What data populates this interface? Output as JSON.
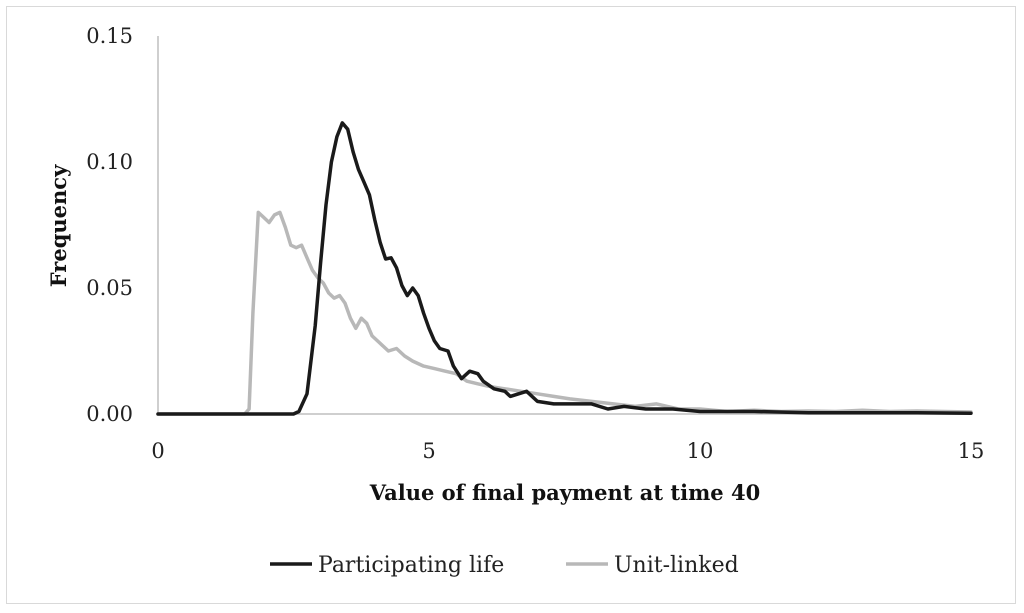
{
  "chart_data": {
    "type": "line",
    "xlabel": "Value of final payment at time 40",
    "ylabel": "Frequency",
    "xlim": [
      0,
      15
    ],
    "ylim": [
      0,
      0.15
    ],
    "x_ticks": [
      0,
      5,
      10,
      15
    ],
    "x_tick_labels": [
      "0",
      "5",
      "10",
      "15"
    ],
    "y_ticks": [
      0,
      0.05,
      0.1,
      0.15
    ],
    "y_tick_labels": [
      "0.00",
      "0.05",
      "0.10",
      "0.15"
    ],
    "grid": false,
    "legend_position": "bottom",
    "series": [
      {
        "name": "Participating life",
        "color": "#1a1a1a",
        "points": [
          [
            0,
            0
          ],
          [
            2.5,
            0
          ],
          [
            2.6,
            0.001
          ],
          [
            2.75,
            0.008
          ],
          [
            2.9,
            0.035
          ],
          [
            3.0,
            0.06
          ],
          [
            3.1,
            0.083
          ],
          [
            3.2,
            0.1
          ],
          [
            3.3,
            0.11
          ],
          [
            3.4,
            0.1155
          ],
          [
            3.5,
            0.113
          ],
          [
            3.6,
            0.104
          ],
          [
            3.7,
            0.097
          ],
          [
            3.8,
            0.092
          ],
          [
            3.9,
            0.087
          ],
          [
            4.0,
            0.077
          ],
          [
            4.1,
            0.068
          ],
          [
            4.2,
            0.0615
          ],
          [
            4.3,
            0.062
          ],
          [
            4.4,
            0.058
          ],
          [
            4.5,
            0.051
          ],
          [
            4.6,
            0.047
          ],
          [
            4.7,
            0.05
          ],
          [
            4.8,
            0.047
          ],
          [
            4.9,
            0.04
          ],
          [
            5.0,
            0.034
          ],
          [
            5.1,
            0.029
          ],
          [
            5.2,
            0.026
          ],
          [
            5.35,
            0.025
          ],
          [
            5.45,
            0.019
          ],
          [
            5.6,
            0.014
          ],
          [
            5.75,
            0.017
          ],
          [
            5.9,
            0.016
          ],
          [
            6.0,
            0.013
          ],
          [
            6.2,
            0.01
          ],
          [
            6.4,
            0.009
          ],
          [
            6.5,
            0.007
          ],
          [
            6.8,
            0.009
          ],
          [
            7.0,
            0.005
          ],
          [
            7.3,
            0.004
          ],
          [
            7.6,
            0.004
          ],
          [
            8.0,
            0.004
          ],
          [
            8.3,
            0.002
          ],
          [
            8.6,
            0.003
          ],
          [
            9.0,
            0.002
          ],
          [
            9.5,
            0.002
          ],
          [
            10.0,
            0.001
          ],
          [
            11.0,
            0.001
          ],
          [
            12.0,
            0.0005
          ],
          [
            13.0,
            0.0005
          ],
          [
            14.0,
            0.0005
          ],
          [
            15.0,
            0.0003
          ]
        ]
      },
      {
        "name": "Unit-linked",
        "color": "#b8b8b8",
        "points": [
          [
            0,
            0
          ],
          [
            1.6,
            0
          ],
          [
            1.68,
            0.002
          ],
          [
            1.75,
            0.04
          ],
          [
            1.85,
            0.08
          ],
          [
            1.95,
            0.078
          ],
          [
            2.05,
            0.076
          ],
          [
            2.15,
            0.079
          ],
          [
            2.25,
            0.08
          ],
          [
            2.35,
            0.074
          ],
          [
            2.45,
            0.067
          ],
          [
            2.55,
            0.066
          ],
          [
            2.65,
            0.067
          ],
          [
            2.75,
            0.062
          ],
          [
            2.85,
            0.057
          ],
          [
            2.95,
            0.054
          ],
          [
            3.05,
            0.052
          ],
          [
            3.15,
            0.048
          ],
          [
            3.25,
            0.046
          ],
          [
            3.35,
            0.047
          ],
          [
            3.45,
            0.044
          ],
          [
            3.55,
            0.038
          ],
          [
            3.65,
            0.034
          ],
          [
            3.75,
            0.038
          ],
          [
            3.85,
            0.036
          ],
          [
            3.95,
            0.031
          ],
          [
            4.1,
            0.028
          ],
          [
            4.25,
            0.025
          ],
          [
            4.4,
            0.026
          ],
          [
            4.55,
            0.023
          ],
          [
            4.7,
            0.021
          ],
          [
            4.9,
            0.019
          ],
          [
            5.1,
            0.018
          ],
          [
            5.3,
            0.017
          ],
          [
            5.5,
            0.016
          ],
          [
            5.7,
            0.013
          ],
          [
            5.9,
            0.012
          ],
          [
            6.1,
            0.011
          ],
          [
            6.4,
            0.01
          ],
          [
            6.7,
            0.009
          ],
          [
            7.0,
            0.008
          ],
          [
            7.3,
            0.007
          ],
          [
            7.6,
            0.006
          ],
          [
            8.0,
            0.005
          ],
          [
            8.4,
            0.004
          ],
          [
            8.8,
            0.003
          ],
          [
            9.2,
            0.004
          ],
          [
            9.6,
            0.002
          ],
          [
            10.0,
            0.002
          ],
          [
            10.5,
            0.001
          ],
          [
            11.0,
            0.0015
          ],
          [
            11.5,
            0.001
          ],
          [
            12.0,
            0.0012
          ],
          [
            12.5,
            0.001
          ],
          [
            13.0,
            0.0015
          ],
          [
            13.5,
            0.001
          ],
          [
            14.0,
            0.0012
          ],
          [
            14.5,
            0.001
          ],
          [
            15.0,
            0.0008
          ]
        ]
      }
    ]
  }
}
